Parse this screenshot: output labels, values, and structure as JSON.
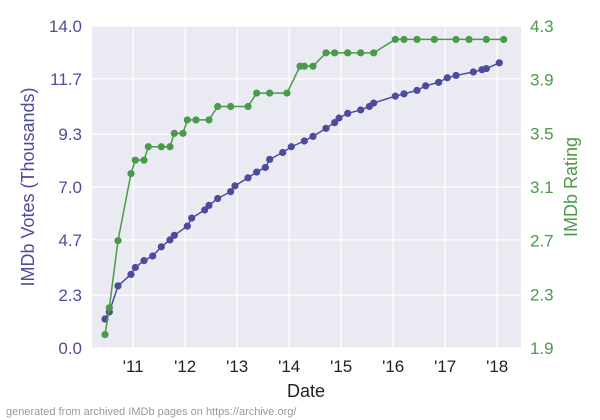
{
  "chart_data": {
    "type": "line",
    "xlabel": "Date",
    "ylabel": "IMDb Votes (Thousands)",
    "y2label": "IMDb Rating",
    "xticks": [
      "'11",
      "'12",
      "'13",
      "'14",
      "'15",
      "'16",
      "'17",
      "'18"
    ],
    "xtick_years": [
      2011,
      2012,
      2013,
      2014,
      2015,
      2016,
      2017,
      2018
    ],
    "xlim": [
      "2010-03",
      "2018-06"
    ],
    "ylim": [
      0,
      14
    ],
    "yticks": [
      "0.0",
      "2.3",
      "4.7",
      "7.0",
      "9.3",
      "11.7",
      "14.0"
    ],
    "y2lim": [
      1.9,
      4.3
    ],
    "y2ticks": [
      "1.9",
      "2.3",
      "2.7",
      "3.1",
      "3.5",
      "3.9",
      "4.3"
    ],
    "grid": true,
    "series": [
      {
        "axis": "left",
        "color": "#4c4c9e",
        "points": [
          [
            "2010-06",
            1.26
          ],
          [
            "2010-07",
            1.57
          ],
          [
            "2010-09",
            2.7
          ],
          [
            "2010-12",
            3.2
          ],
          [
            "2011-01",
            3.5
          ],
          [
            "2011-03",
            3.8
          ],
          [
            "2011-05",
            4.0
          ],
          [
            "2011-07",
            4.4
          ],
          [
            "2011-09",
            4.7
          ],
          [
            "2011-10",
            4.9
          ],
          [
            "2012-01",
            5.3
          ],
          [
            "2012-02",
            5.65
          ],
          [
            "2012-05",
            6.0
          ],
          [
            "2012-06",
            6.2
          ],
          [
            "2012-08",
            6.5
          ],
          [
            "2012-11",
            6.8
          ],
          [
            "2012-12",
            7.05
          ],
          [
            "2013-03",
            7.4
          ],
          [
            "2013-05",
            7.65
          ],
          [
            "2013-07",
            7.85
          ],
          [
            "2013-08",
            8.2
          ],
          [
            "2013-11",
            8.5
          ],
          [
            "2014-01",
            8.75
          ],
          [
            "2014-04",
            9.0
          ],
          [
            "2014-06",
            9.2
          ],
          [
            "2014-09",
            9.55
          ],
          [
            "2014-11",
            9.8
          ],
          [
            "2014-12",
            10.0
          ],
          [
            "2015-02",
            10.2
          ],
          [
            "2015-05",
            10.35
          ],
          [
            "2015-07",
            10.5
          ],
          [
            "2015-08",
            10.65
          ],
          [
            "2016-01",
            10.95
          ],
          [
            "2016-03",
            11.05
          ],
          [
            "2016-06",
            11.2
          ],
          [
            "2016-08",
            11.4
          ],
          [
            "2016-11",
            11.55
          ],
          [
            "2017-01",
            11.75
          ],
          [
            "2017-03",
            11.85
          ],
          [
            "2017-07",
            12.0
          ],
          [
            "2017-09",
            12.1
          ],
          [
            "2017-10",
            12.15
          ],
          [
            "2018-01",
            12.4
          ]
        ]
      },
      {
        "axis": "right",
        "color": "#4a9a4a",
        "points": [
          [
            "2010-06",
            2.0
          ],
          [
            "2010-07",
            2.2
          ],
          [
            "2010-09",
            2.7
          ],
          [
            "2010-12",
            3.2
          ],
          [
            "2011-01",
            3.3
          ],
          [
            "2011-03",
            3.3
          ],
          [
            "2011-04",
            3.4
          ],
          [
            "2011-07",
            3.4
          ],
          [
            "2011-09",
            3.4
          ],
          [
            "2011-10",
            3.5
          ],
          [
            "2011-12",
            3.5
          ],
          [
            "2012-01",
            3.6
          ],
          [
            "2012-03",
            3.6
          ],
          [
            "2012-06",
            3.6
          ],
          [
            "2012-08",
            3.7
          ],
          [
            "2012-11",
            3.7
          ],
          [
            "2013-03",
            3.7
          ],
          [
            "2013-05",
            3.8
          ],
          [
            "2013-08",
            3.8
          ],
          [
            "2013-12",
            3.8
          ],
          [
            "2014-03",
            4.0
          ],
          [
            "2014-04",
            4.0
          ],
          [
            "2014-06",
            4.0
          ],
          [
            "2014-09",
            4.1
          ],
          [
            "2014-11",
            4.1
          ],
          [
            "2015-02",
            4.1
          ],
          [
            "2015-05",
            4.1
          ],
          [
            "2015-08",
            4.1
          ],
          [
            "2016-01",
            4.2
          ],
          [
            "2016-03",
            4.2
          ],
          [
            "2016-06",
            4.2
          ],
          [
            "2016-10",
            4.2
          ],
          [
            "2017-03",
            4.2
          ],
          [
            "2017-06",
            4.2
          ],
          [
            "2017-10",
            4.2
          ],
          [
            "2018-02",
            4.2
          ]
        ]
      }
    ]
  },
  "footer": "generated from archived IMDb pages on https://archive.org/"
}
